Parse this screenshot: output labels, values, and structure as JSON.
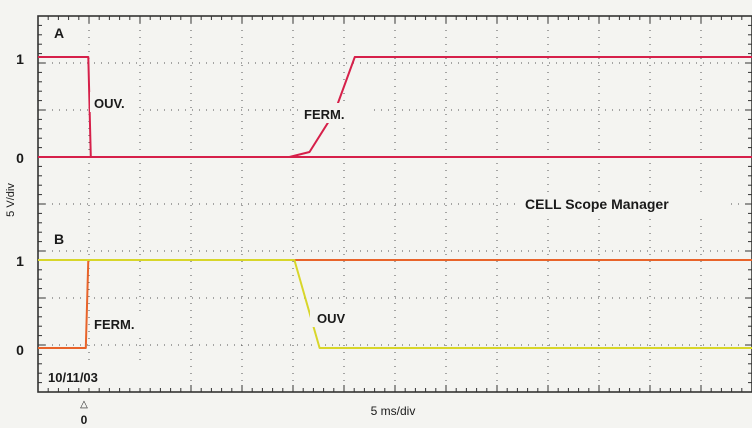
{
  "chart_data": {
    "type": "line",
    "xlabel": "5 ms/div",
    "ylabel": "5 V/div",
    "date": "10/11/03",
    "watermark": "CELL Scope Manager",
    "x_origin_label": "0",
    "xlim": [
      -1,
      13.2
    ],
    "xdivs": 14,
    "grid": true,
    "panels": [
      {
        "name": "A",
        "yticks": [
          "1",
          "0"
        ],
        "ylim": [
          0,
          1
        ],
        "annotations": [
          "OUV.",
          "FERM."
        ],
        "series": [
          {
            "color": "#d6204a",
            "x": [
              -1,
              -0.1,
              0,
              0.05,
              4,
              4.4,
              4.9,
              5.3,
              13.2
            ],
            "y": [
              1,
              1,
              1,
              0,
              0,
              0.05,
              0.45,
              1,
              1
            ]
          },
          {
            "color": "#d6204a",
            "x": [
              -1,
              0,
              0.05,
              13.2
            ],
            "y": [
              0,
              0,
              0,
              0
            ]
          }
        ]
      },
      {
        "name": "B",
        "yticks": [
          "1",
          "0"
        ],
        "ylim": [
          0,
          1
        ],
        "annotations": [
          "FERM.",
          "OUV"
        ],
        "series": [
          {
            "color": "#e8632a",
            "x": [
              -1,
              -0.05,
              0,
              13.2
            ],
            "y": [
              0,
              0,
              1,
              1
            ]
          },
          {
            "color": "#d8d62a",
            "x": [
              -1,
              4.1,
              4.6,
              13.2
            ],
            "y": [
              1,
              1,
              0,
              0
            ]
          }
        ]
      }
    ]
  }
}
